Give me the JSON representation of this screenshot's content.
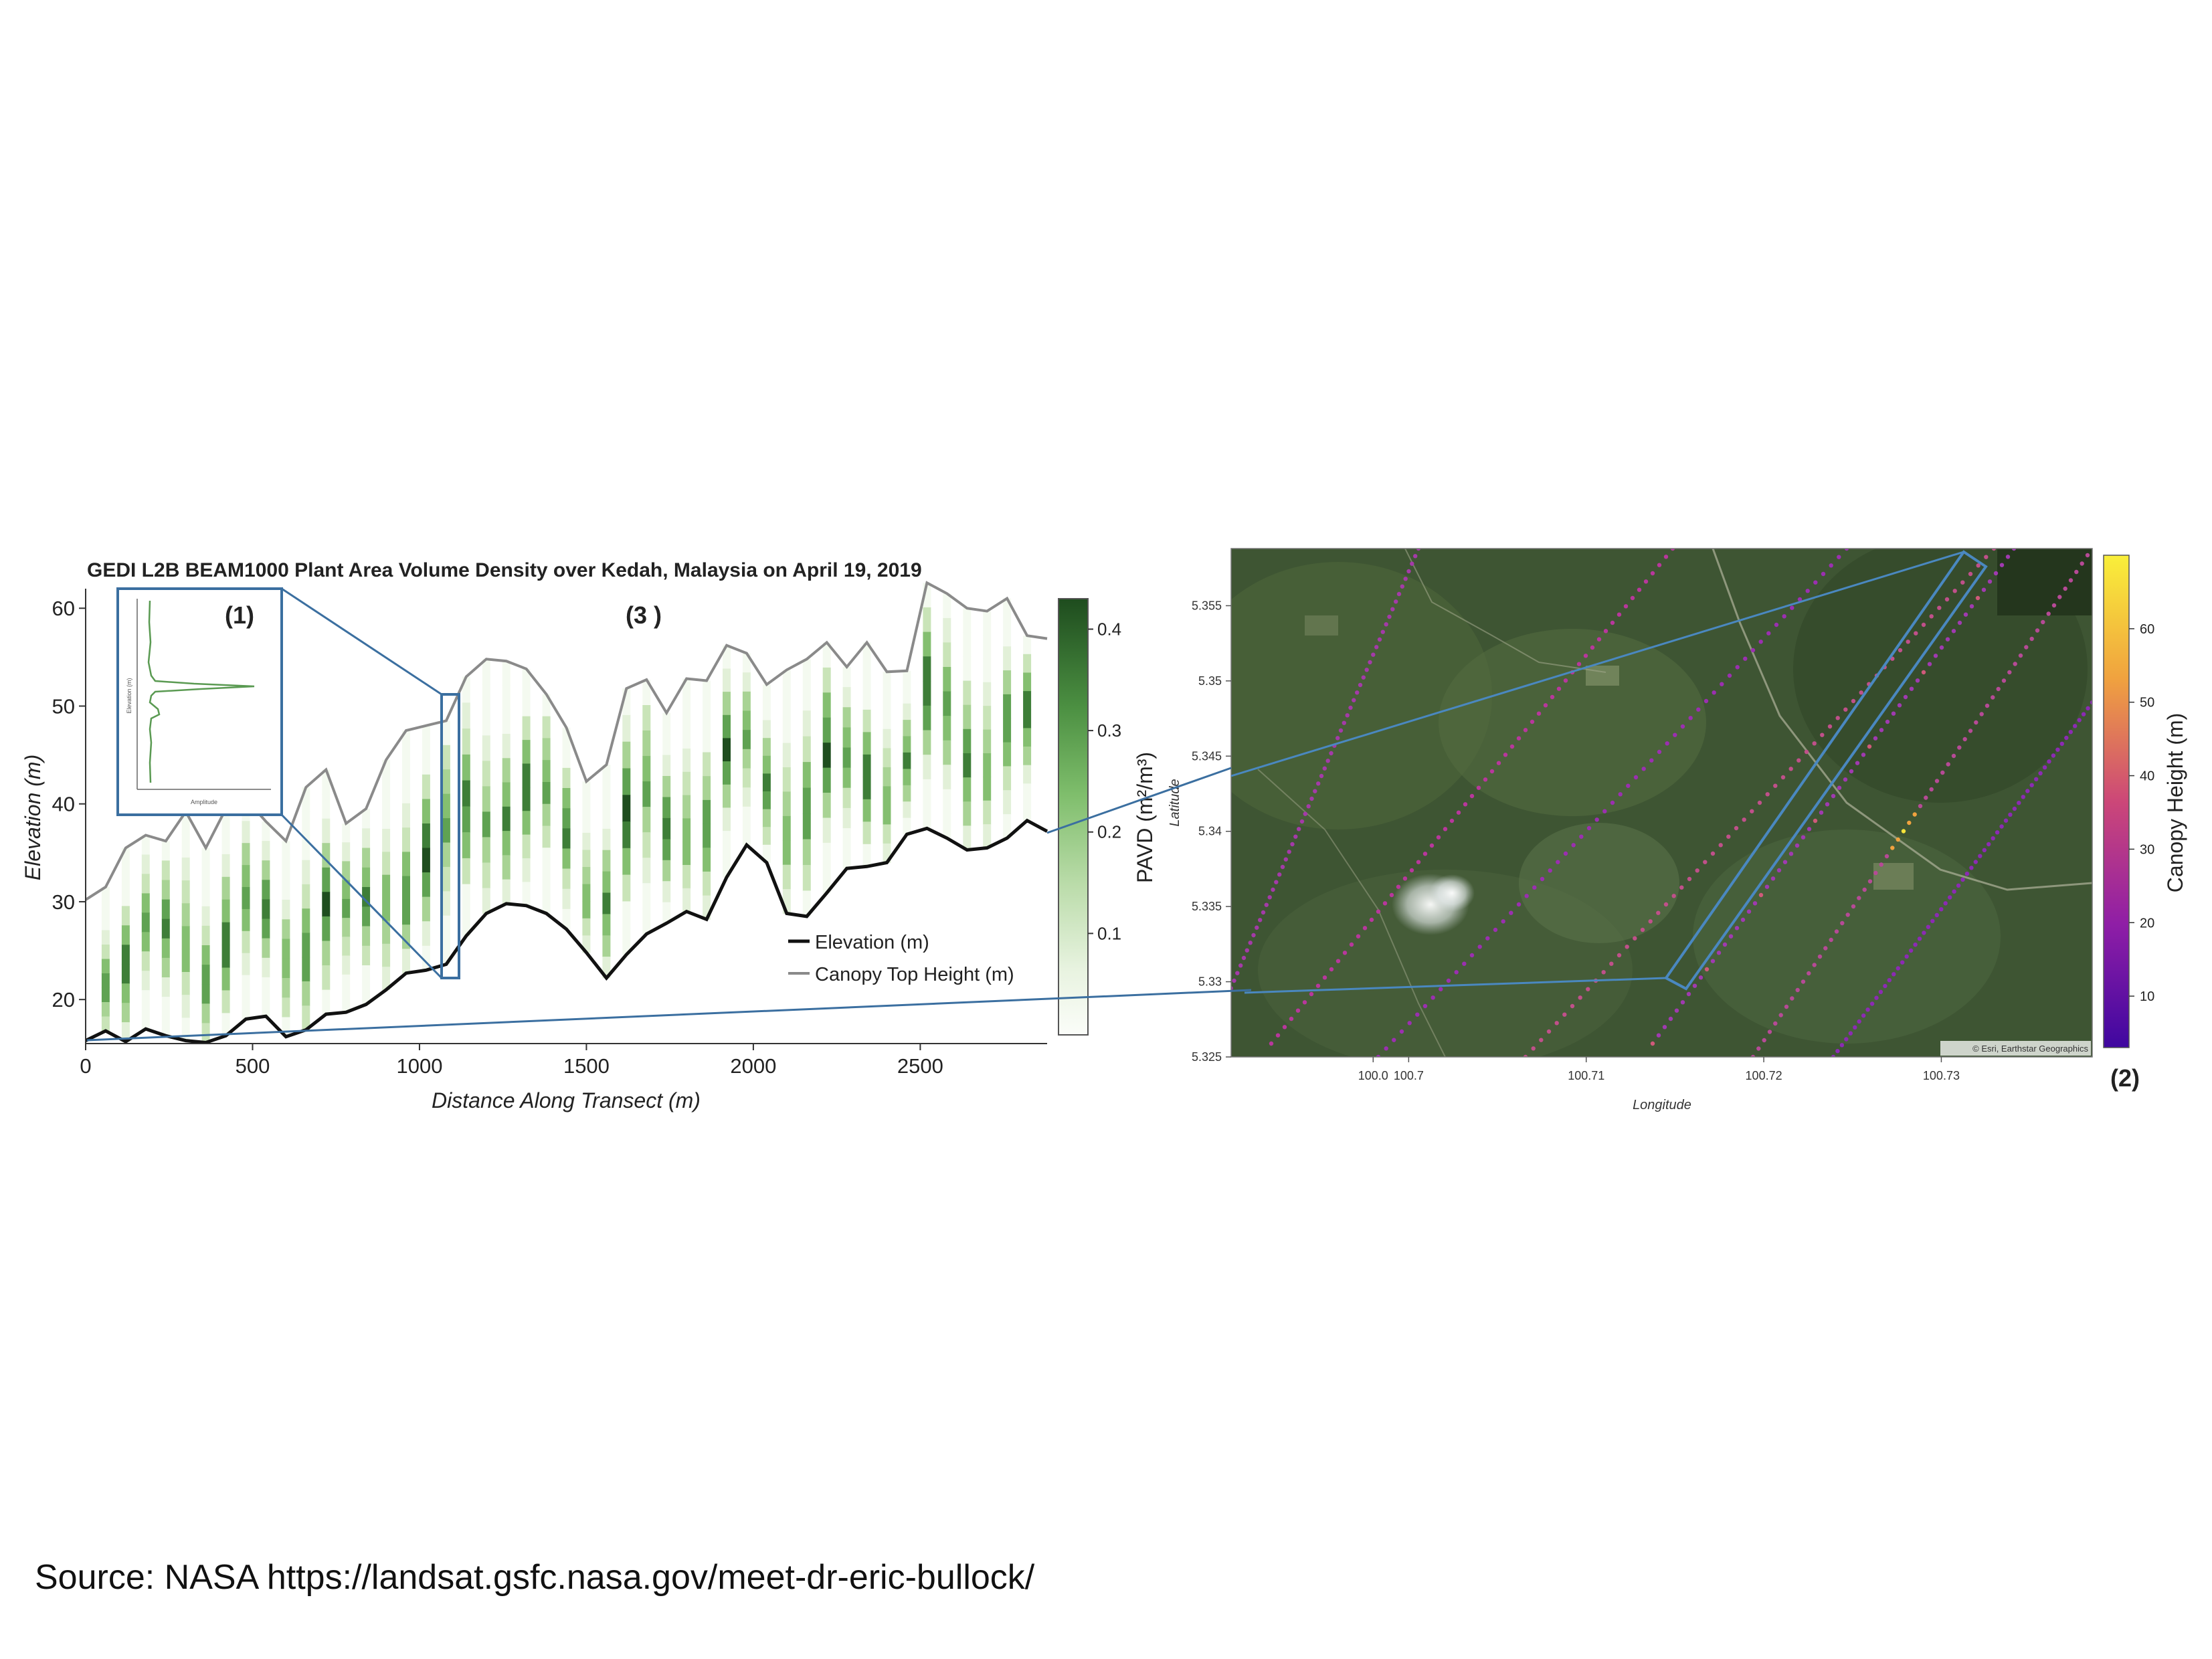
{
  "left_chart": {
    "title": "GEDI L2B BEAM1000 Plant Area Volume Density over Kedah, Malaysia on April 19, 2019",
    "panel_label": "(3 )",
    "xlabel": "Distance Along Transect (m)",
    "ylabel": "Elevation (m)",
    "xticks": [
      "0",
      "500",
      "1000",
      "1500",
      "2000",
      "2500"
    ],
    "yticks": [
      "20",
      "30",
      "40",
      "50",
      "60"
    ],
    "colorbar_label": "PAVD (m²/m³)",
    "colorbar_ticks": [
      "0.1",
      "0.2",
      "0.3",
      "0.4"
    ],
    "legend": {
      "elevation": "Elevation (m)",
      "canopy": "Canopy Top Height (m)"
    },
    "colors": {
      "elevation": "#111111",
      "canopy": "#8a8a8a",
      "pavd_low": "#f4faf0",
      "pavd_high": "#1f4e1f",
      "callout": "#3b6fa0"
    }
  },
  "inset": {
    "panel_label": "(1)",
    "xlabel": "Amplitude",
    "ylabel": "Elevation (m)"
  },
  "map": {
    "xlabel": "Longitude",
    "ylabel": "Latitude",
    "xticks": [
      "100.0",
      "100.7",
      "100.71",
      "100.72",
      "100.73"
    ],
    "yticks": [
      "5.355",
      "5.35",
      "5.345",
      "5.34",
      "5.335",
      "5.33",
      "5.325"
    ],
    "attribution": "© Esri, Earthstar Geographics",
    "panel_label": "(2)",
    "colorbar_label": "Canopy Height (m)",
    "colorbar_ticks": [
      "10",
      "20",
      "30",
      "40",
      "50",
      "60"
    ]
  },
  "source_text": "Source: NASA https://landsat.gsfc.nasa.gov/meet-dr-eric-bullock/",
  "chart_data": [
    {
      "type": "line",
      "title": "GEDI L2B BEAM1000 Plant Area Volume Density over Kedah, Malaysia on April 19, 2019",
      "xlabel": "Distance Along Transect (m)",
      "ylabel": "Elevation (m)",
      "xlim": [
        0,
        2880
      ],
      "ylim": [
        15.5,
        62
      ],
      "grid": false,
      "legend_position": "center-right",
      "series": [
        {
          "name": "Elevation (m)",
          "x": [
            0,
            60,
            120,
            180,
            240,
            300,
            360,
            420,
            480,
            540,
            600,
            660,
            720,
            780,
            840,
            900,
            960,
            1020,
            1080,
            1140,
            1200,
            1260,
            1320,
            1380,
            1440,
            1500,
            1560,
            1620,
            1680,
            1740,
            1800,
            1860,
            1920,
            1980,
            2040,
            2100,
            2160,
            2220,
            2280,
            2340,
            2400,
            2460,
            2520,
            2580,
            2640,
            2700,
            2760,
            2820,
            2880
          ],
          "values": [
            15.8,
            16.8,
            15.7,
            17.0,
            16.3,
            15.8,
            15.6,
            16.3,
            18.0,
            18.3,
            16.2,
            16.9,
            18.5,
            18.7,
            19.5,
            21.0,
            22.7,
            23.0,
            23.6,
            26.5,
            28.8,
            29.8,
            29.6,
            28.8,
            27.2,
            24.8,
            22.2,
            24.6,
            26.7,
            27.8,
            29.0,
            28.2,
            32.5,
            35.8,
            34.0,
            28.8,
            28.5,
            30.9,
            33.4,
            33.6,
            34.0,
            36.9,
            37.5,
            36.5,
            35.3,
            35.5,
            36.5,
            38.3,
            37.2
          ]
        },
        {
          "name": "Canopy Top Height (m)",
          "x": [
            0,
            60,
            120,
            180,
            240,
            300,
            360,
            420,
            480,
            540,
            600,
            660,
            720,
            780,
            840,
            900,
            960,
            1020,
            1080,
            1140,
            1200,
            1260,
            1320,
            1380,
            1440,
            1500,
            1560,
            1620,
            1680,
            1740,
            1800,
            1860,
            1920,
            1980,
            2040,
            2100,
            2160,
            2220,
            2280,
            2340,
            2400,
            2460,
            2520,
            2580,
            2640,
            2700,
            2760,
            2820,
            2880
          ],
          "values": [
            30.2,
            31.5,
            35.5,
            36.8,
            36.2,
            39.2,
            35.5,
            39.5,
            40.5,
            38.2,
            36.2,
            41.7,
            43.5,
            38.0,
            39.5,
            44.5,
            47.5,
            48.0,
            48.5,
            53.0,
            54.8,
            54.6,
            53.8,
            51.2,
            47.8,
            42.3,
            44.0,
            51.8,
            52.7,
            49.3,
            52.8,
            52.6,
            56.2,
            55.4,
            52.2,
            53.7,
            54.8,
            56.5,
            54.0,
            56.5,
            53.5,
            53.6,
            62.6,
            61.5,
            60.0,
            59.7,
            61.0,
            57.2,
            56.9
          ]
        }
      ],
      "pavd_colorbar_range": [
        0,
        0.43
      ]
    },
    {
      "type": "scatter",
      "xlabel": "Longitude",
      "ylabel": "Latitude",
      "xlim": [
        100.69,
        100.7385
      ],
      "ylim": [
        5.325,
        5.3588
      ],
      "note_colorbar": "Canopy Height (m)",
      "colorbar_range": [
        3,
        70
      ]
    }
  ]
}
